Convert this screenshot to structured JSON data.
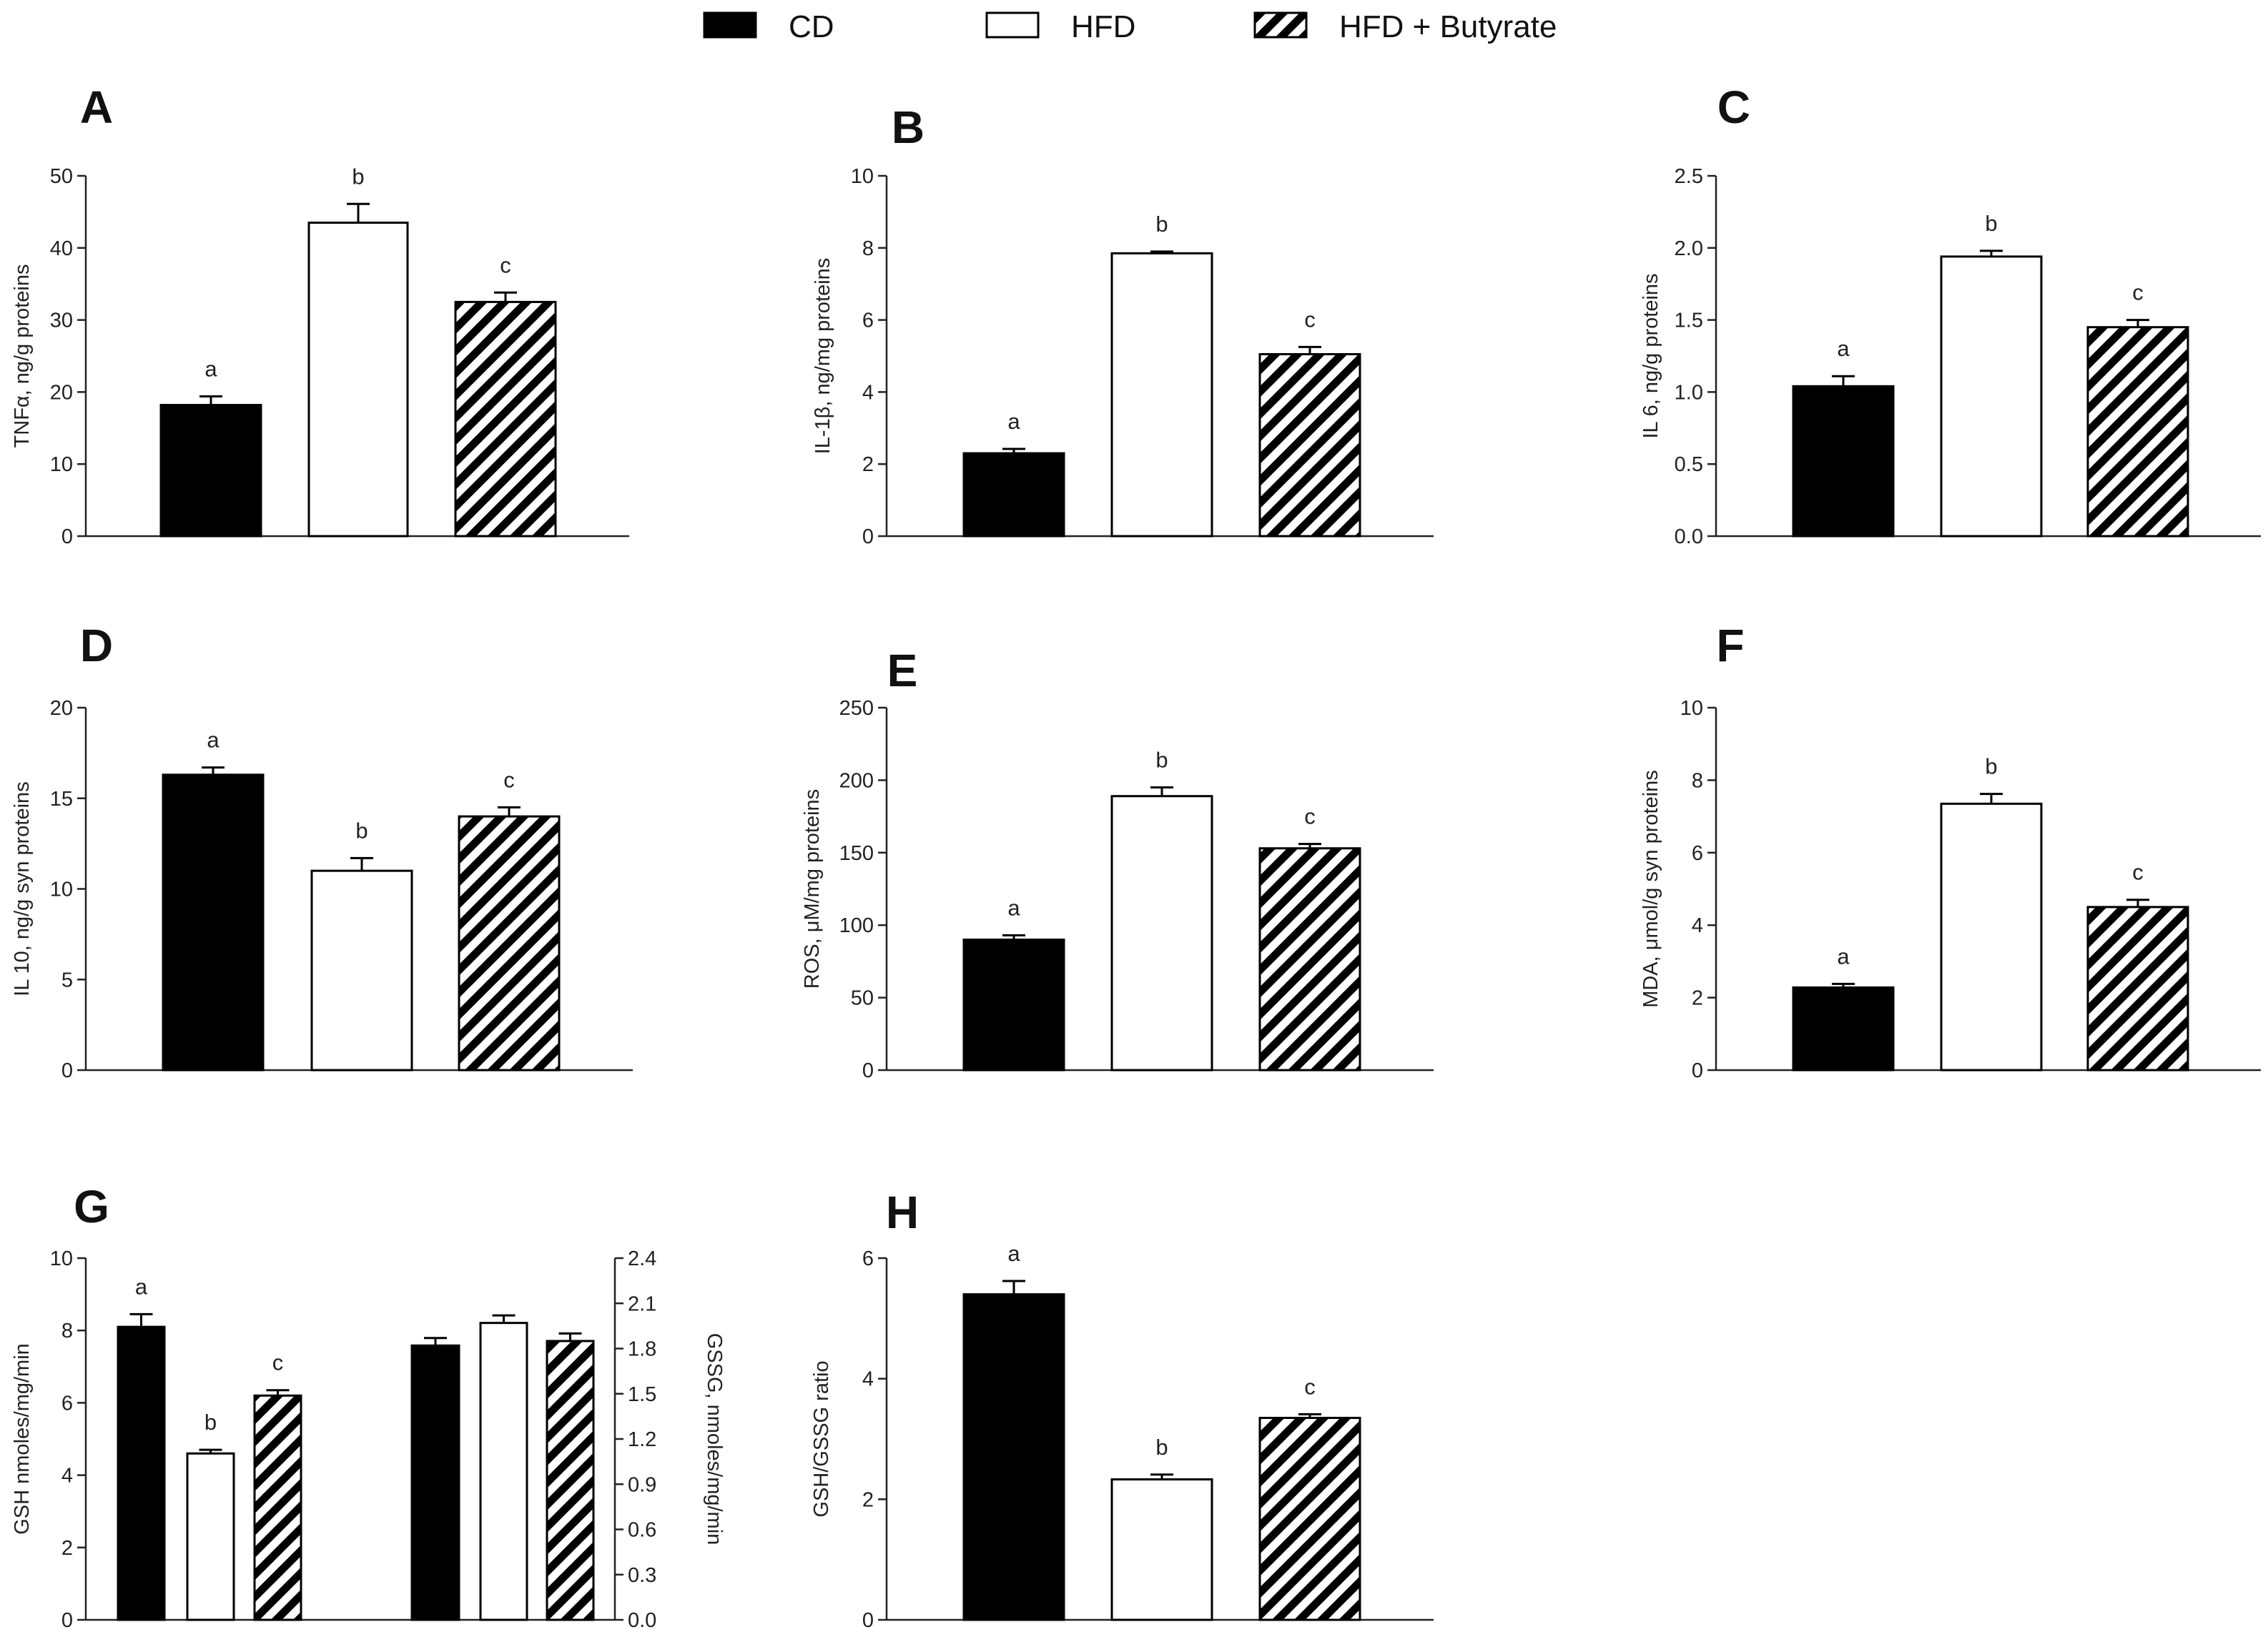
{
  "legend": [
    {
      "label": "CD",
      "style": "solid"
    },
    {
      "label": "HFD",
      "style": "open"
    },
    {
      "label": "HFD + Butyrate",
      "style": "hatch"
    }
  ],
  "colors": {
    "bar": "#000000",
    "open_fill": "#ffffff",
    "axis": "#222222"
  },
  "chart_data": [
    {
      "type": "bar",
      "panel": "A",
      "ylabel": "TNFα, ng/g proteins",
      "ylim": [
        0,
        50
      ],
      "yticks": [
        "0",
        "10",
        "20",
        "30",
        "40",
        "50"
      ],
      "categories": [
        "CD",
        "HFD",
        "HFD + Butyrate"
      ],
      "values": [
        18.2,
        43.5,
        32.5
      ],
      "errors": [
        1.2,
        2.6,
        1.3
      ],
      "letters": [
        "a",
        "b",
        "c"
      ]
    },
    {
      "type": "bar",
      "panel": "B",
      "ylabel": "IL-1β, ng/mg proteins",
      "ylim": [
        0,
        10
      ],
      "yticks": [
        "0",
        "2",
        "4",
        "6",
        "8",
        "10"
      ],
      "categories": [
        "CD",
        "HFD",
        "HFD + Butyrate"
      ],
      "values": [
        2.3,
        7.85,
        5.05
      ],
      "errors": [
        0.12,
        0.05,
        0.2
      ],
      "letters": [
        "a",
        "b",
        "c"
      ]
    },
    {
      "type": "bar",
      "panel": "C",
      "ylabel": "IL 6, ng/g proteins",
      "ylim": [
        0,
        2.5
      ],
      "yticks": [
        "0.0",
        "0.5",
        "1.0",
        "1.5",
        "2.0",
        "2.5"
      ],
      "categories": [
        "CD",
        "HFD",
        "HFD + Butyrate"
      ],
      "values": [
        1.04,
        1.94,
        1.45
      ],
      "errors": [
        0.07,
        0.04,
        0.05
      ],
      "letters": [
        "a",
        "b",
        "c"
      ]
    },
    {
      "type": "bar",
      "panel": "D",
      "ylabel": "IL 10, ng/g syn proteins",
      "ylim": [
        0,
        20
      ],
      "yticks": [
        "0",
        "5",
        "10",
        "15",
        "20"
      ],
      "categories": [
        "CD",
        "HFD",
        "HFD + Butyrate"
      ],
      "values": [
        16.3,
        11.0,
        14.0
      ],
      "errors": [
        0.4,
        0.7,
        0.5
      ],
      "letters": [
        "a",
        "b",
        "c"
      ]
    },
    {
      "type": "bar",
      "panel": "E",
      "ylabel": "ROS, μM/mg proteins",
      "ylim": [
        0,
        250
      ],
      "yticks": [
        "0",
        "50",
        "100",
        "150",
        "200",
        "250"
      ],
      "categories": [
        "CD",
        "HFD",
        "HFD + Butyrate"
      ],
      "values": [
        90,
        189,
        153
      ],
      "errors": [
        3,
        6,
        3
      ],
      "letters": [
        "a",
        "b",
        "c"
      ]
    },
    {
      "type": "bar",
      "panel": "F",
      "ylabel": "MDA, μmol/g syn proteins",
      "ylim": [
        0,
        10
      ],
      "yticks": [
        "0",
        "2",
        "4",
        "6",
        "8",
        "10"
      ],
      "categories": [
        "CD",
        "HFD",
        "HFD + Butyrate"
      ],
      "values": [
        2.28,
        7.35,
        4.5
      ],
      "errors": [
        0.1,
        0.27,
        0.2
      ],
      "letters": [
        "a",
        "b",
        "c"
      ]
    },
    {
      "type": "bar",
      "panel": "G",
      "ylabel": "GSH nmoles/mg/min",
      "ylim": [
        0,
        10
      ],
      "yticks": [
        "0",
        "2",
        "4",
        "6",
        "8",
        "10"
      ],
      "ylabel_right": "GSSG, nmoles/mg/min",
      "ylim_right": [
        0,
        2.4
      ],
      "yticks_right": [
        "0.0",
        "0.3",
        "0.6",
        "0.9",
        "1.2",
        "1.5",
        "1.8",
        "2.1",
        "2.4"
      ],
      "categories": [
        "CD",
        "HFD",
        "HFD + Butyrate"
      ],
      "series": [
        {
          "name": "GSH",
          "axis": "left",
          "values": [
            8.1,
            4.6,
            6.2
          ],
          "errors": [
            0.35,
            0.1,
            0.15
          ],
          "letters": [
            "a",
            "b",
            "c"
          ]
        },
        {
          "name": "GSSG",
          "axis": "right",
          "values": [
            1.82,
            1.97,
            1.85
          ],
          "errors": [
            0.05,
            0.05,
            0.05
          ],
          "letters": [
            "",
            "",
            ""
          ]
        }
      ]
    },
    {
      "type": "bar",
      "panel": "H",
      "ylabel": "GSH/GSSG ratio",
      "ylim": [
        0,
        6
      ],
      "yticks": [
        "0",
        "2",
        "4",
        "6"
      ],
      "categories": [
        "CD",
        "HFD",
        "HFD + Butyrate"
      ],
      "values": [
        5.4,
        2.33,
        3.35
      ],
      "errors": [
        0.22,
        0.08,
        0.06
      ],
      "letters": [
        "a",
        "b",
        "c"
      ]
    }
  ]
}
